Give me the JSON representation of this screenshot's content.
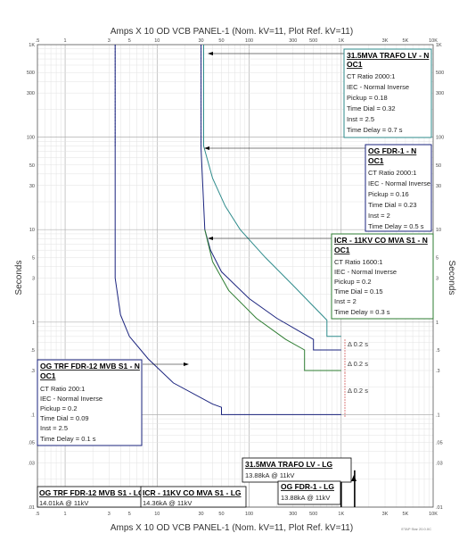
{
  "chart_data": {
    "type": "line",
    "title": "Amps  X  10   OD VCB PANEL-1 (Nom. kV=11, Plot Ref. kV=11)",
    "xlabel": "Amps  X  10   OD VCB PANEL-1 (Nom. kV=11, Plot Ref. kV=11)",
    "ylabel": "Seconds",
    "xscale": "log",
    "yscale": "log",
    "xlim": [
      0.5,
      10000
    ],
    "ylim": [
      0.01,
      1000
    ],
    "grid": true,
    "x_ticks": [
      ".5",
      "1",
      "3",
      "5",
      "10",
      "30",
      "50",
      "100",
      "300",
      "500",
      "1K",
      "3K",
      "5K",
      "10K"
    ],
    "y_ticks": [
      ".01",
      ".03",
      ".05",
      ".1",
      ".3",
      ".5",
      "1",
      "3",
      "5",
      "10",
      "30",
      "50",
      "100",
      "300",
      "500",
      "1K"
    ],
    "series": [
      {
        "color": "#2e8b8b",
        "points": [
          [
            32,
            1000
          ],
          [
            32,
            80
          ],
          [
            40,
            36
          ],
          [
            55,
            18
          ],
          [
            80,
            10
          ],
          [
            150,
            5
          ],
          [
            300,
            2.5
          ],
          [
            700,
            1.05
          ],
          [
            700,
            0.7
          ],
          [
            1000,
            0.7
          ]
        ]
      },
      {
        "color": "#1a237e",
        "points": [
          [
            30,
            1000
          ],
          [
            30,
            75
          ],
          [
            33,
            10
          ],
          [
            38,
            6
          ],
          [
            50,
            3.5
          ],
          [
            100,
            1.8
          ],
          [
            200,
            1.1
          ],
          [
            500,
            0.65
          ],
          [
            500,
            0.5
          ],
          [
            1000,
            0.5
          ]
        ]
      },
      {
        "color": "#2e7d32",
        "points": [
          [
            33,
            10
          ],
          [
            40,
            4.5
          ],
          [
            60,
            2.2
          ],
          [
            120,
            1.1
          ],
          [
            250,
            0.65
          ],
          [
            400,
            0.5
          ],
          [
            400,
            0.3
          ],
          [
            1000,
            0.3
          ]
        ]
      },
      {
        "color": "#1a237e",
        "points": [
          [
            3.5,
            1000
          ],
          [
            3.5,
            3
          ],
          [
            4,
            1.2
          ],
          [
            5,
            0.7
          ],
          [
            8,
            0.4
          ],
          [
            15,
            0.22
          ],
          [
            40,
            0.13
          ],
          [
            50,
            0.12
          ],
          [
            50,
            0.1
          ],
          [
            1000,
            0.1
          ]
        ]
      },
      {
        "color": "#000000",
        "points": [
          [
            1000,
            0.01
          ],
          [
            1000,
            0.025
          ]
        ]
      },
      {
        "color": "#000000",
        "points": [
          [
            1400,
            0.01
          ],
          [
            1400,
            0.025
          ]
        ]
      }
    ],
    "annotations": [
      {
        "title": "31.5MVA TRAFO LV - N",
        "title2": "OC1",
        "color": "#2e8b8b",
        "lines": [
          "CT Ratio 2000:1",
          "IEC - Normal Inverse",
          "Pickup = 0.18",
          "Time Dial = 0.32",
          "Inst = 2.5",
          "Time Delay = 0.7 s"
        ]
      },
      {
        "title": "OG FDR-1 - N",
        "title2": "OC1",
        "color": "#1a237e",
        "lines": [
          "CT Ratio 2000:1",
          "IEC - Normal Inverse",
          "Pickup = 0.16",
          "Time Dial = 0.23",
          "Inst = 2",
          "Time Delay = 0.5 s"
        ]
      },
      {
        "title": "ICR - 11KV CO MVA S1 - N",
        "title2": "OC1",
        "color": "#2e7d32",
        "lines": [
          "CT Ratio 1600:1",
          "IEC - Normal Inverse",
          "Pickup = 0.2",
          "Time Dial = 0.15",
          "Inst = 2",
          "Time Delay = 0.3 s"
        ]
      },
      {
        "title": "OG TRF FDR-12 MVB S1 - N",
        "title2": "OC1",
        "color": "#1a237e",
        "lines": [
          "CT Ratio 200:1",
          "IEC - Normal Inverse",
          "Pickup = 0.2",
          "Time Dial = 0.09",
          "Inst = 2.5",
          "Time Delay = 0.1 s"
        ]
      }
    ],
    "margins": [
      "Δ 0.2 s",
      "Δ 0.2 s",
      "Δ 0.2 s"
    ],
    "fault_labels": [
      {
        "title": "31.5MVA TRAFO LV - LG",
        "value": "13.88kA @ 11kV"
      },
      {
        "title": "OG FDR-1 - LG",
        "value": "13.88kA @ 11kV"
      },
      {
        "title": "OG TRF FDR-12 MVB S1 - LG",
        "value": "14.01kA @ 11kV"
      },
      {
        "title": "ICR - 11KV CO MVA S1 - LG",
        "value": "14.36kA @ 11kV"
      }
    ],
    "footer": "ETAP Star 20.0.0C"
  }
}
